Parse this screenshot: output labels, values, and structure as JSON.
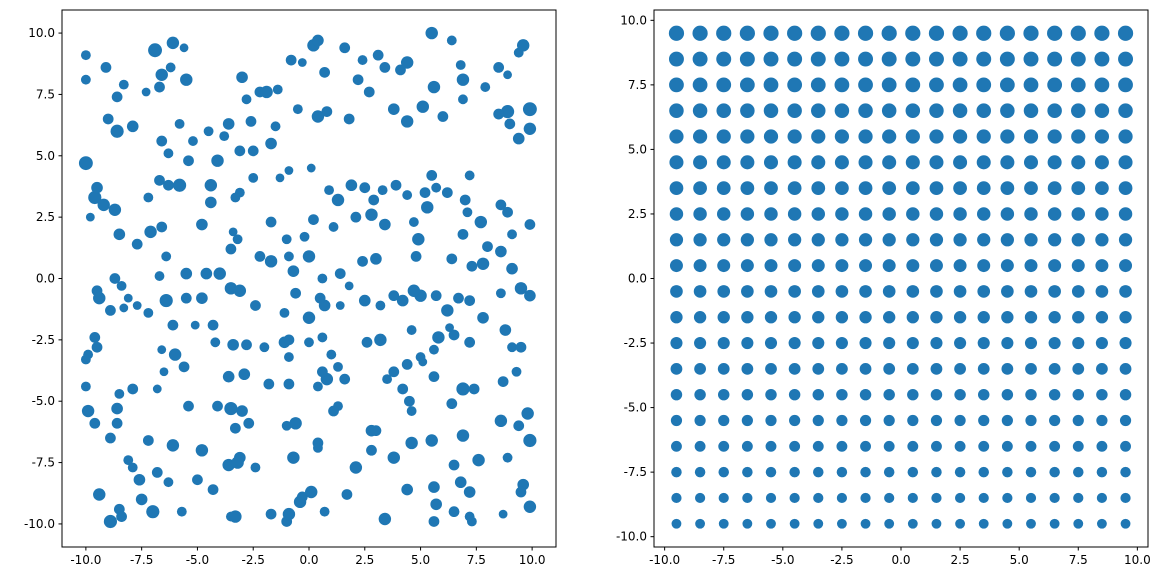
{
  "chart_data": [
    {
      "type": "scatter",
      "color": "#1f77b4",
      "xlim": [
        -11.07,
        11.07
      ],
      "ylim": [
        -10.94,
        10.94
      ],
      "xticks": [
        {
          "value": -10,
          "label": "-10.0"
        },
        -7.5,
        {
          "value": -5,
          "label": "-5.0"
        },
        -2.5,
        {
          "value": 0,
          "label": "0.0"
        },
        2.5,
        {
          "value": 5,
          "label": "5.0"
        },
        7.5,
        {
          "value": 10,
          "label": "10.0"
        }
      ],
      "yticks": [
        {
          "value": -10,
          "label": "-10.0"
        },
        -7.5,
        {
          "value": -5,
          "label": "-5.0"
        },
        -2.5,
        {
          "value": 0,
          "label": "0.0"
        },
        2.5,
        {
          "value": 5,
          "label": "5.0"
        },
        7.5,
        {
          "value": 10,
          "label": "10.0"
        }
      ],
      "x": [
        -10,
        -10,
        -10,
        -9.6,
        -9.5,
        -9.2,
        -8.7,
        -9.8,
        -9,
        -9.1,
        -8.6,
        -8.3,
        -8.6,
        -7.9,
        -7.3,
        -6.9,
        -6.1,
        -5.6,
        -6.6,
        -6.2,
        -5.5,
        -6.7,
        -5.8,
        -6.6,
        -6.3,
        -5.4,
        -4.5,
        -3.6,
        -2.6,
        -2.8,
        -3,
        -2.2,
        -1.9,
        -1.4,
        -0.8,
        -0.3,
        0.2,
        0.4,
        0.7,
        1.6,
        2.4,
        3.1,
        3.4,
        4.1,
        4.4,
        5.5,
        6.4,
        6.9,
        6.8,
        8.5,
        8.9,
        9.4,
        9.6,
        9.9,
        9.9,
        9.4,
        8.9,
        8.5,
        9,
        7.9,
        6.9,
        5.6,
        5.1,
        6,
        4.4,
        3.8,
        2.7,
        2.2,
        1.8,
        0.8,
        0.4,
        -0.5,
        -1.5,
        -1.7,
        -2.5,
        -3.1,
        -3.8,
        -4.1,
        -5.2,
        -6.7,
        -7.2,
        -6.3,
        -5.8,
        -4.4,
        -4.4,
        -3.1,
        -3.3,
        -2.5,
        -1.3,
        -0.9,
        0.1,
        0.9,
        1.3,
        1.9,
        2.5,
        2.9,
        3.3,
        3.9,
        4.4,
        5.2,
        5.5,
        5.7,
        6.2,
        7,
        7.2,
        7.1,
        8.6,
        8.9,
        9.9,
        9.1,
        7.7,
        6.9,
        5.3,
        4.7,
        3.4,
        2.8,
        2.1,
        1.1,
        0.2,
        -0.2,
        -1,
        -1.7,
        -3.4,
        -3.2,
        -4.8,
        -6.6,
        -7.1,
        -7.7,
        -8.5,
        -8.7,
        -9.5,
        -9.4,
        -8.4,
        -8.1,
        -8.3,
        -8.9,
        -6.7,
        -6.4,
        -5.5,
        -4.6,
        -4,
        -3.5,
        -2.2,
        -1.7,
        -0.9,
        -0.7,
        0,
        0.6,
        1.4,
        1.8,
        2.4,
        3,
        4.8,
        4.9,
        6.4,
        7.3,
        7.8,
        8,
        8.6,
        9.1,
        9.5,
        9.9,
        8.6,
        7.2,
        6.7,
        6.2,
        5.7,
        5,
        4.7,
        4.2,
        3.8,
        3.2,
        2.5,
        1.4,
        0.7,
        0.5,
        0,
        -0.6,
        -1.1,
        -2.4,
        -3.5,
        -3.1,
        -4.8,
        -5.5,
        -6.4,
        -5.1,
        -6.1,
        -7.2,
        -7.7,
        -9.6,
        -9.5,
        -9.9,
        -10,
        -10,
        -9.9,
        -9.6,
        -8.6,
        -8.6,
        -7.9,
        -8.5,
        -8.1,
        -7.9,
        -7.2,
        -6.8,
        -6.8,
        -6,
        -5.6,
        -6.6,
        -4.3,
        -4.2,
        -3.4,
        -2.8,
        -2,
        -1.1,
        -0.9,
        0,
        0.6,
        1,
        1.3,
        2.6,
        3.2,
        4.6,
        5,
        5.6,
        5.8,
        6.5,
        7.2,
        7.8,
        8.8,
        9.1,
        9.5,
        8.7,
        9.3,
        9.8,
        9.9,
        9.4,
        8.6,
        7.4,
        6.9,
        6.4,
        5.6,
        5.1,
        4.4,
        3.8,
        4.2,
        4.5,
        4.6,
        3.5,
        1.6,
        0.8,
        0.6,
        -0.9,
        -1.8,
        -2.9,
        -3.6,
        -3.5,
        -3,
        -4.1,
        -5.4,
        -6.5,
        -0.9,
        0.4,
        1.3,
        1.1,
        -1,
        -0.6,
        -2.7,
        -3.3,
        -3.1,
        -3.6,
        -3.2,
        -2.4,
        -4.8,
        -5,
        -6.1,
        -6.3,
        -4.3,
        -3.5,
        -3.3,
        -1.7,
        -1,
        -0.9,
        -0.4,
        -0.3,
        0.7,
        0.1,
        -0.7,
        0.4,
        0.4,
        1.7,
        2.1,
        3.4,
        2.8,
        2.8,
        3,
        3.8,
        4.4,
        4.6,
        5.5,
        5.6,
        5.7,
        5.6,
        6.5,
        6.8,
        6.9,
        7.2,
        7.6,
        7.2,
        6.5,
        7.3,
        8.9,
        9.6,
        9.5,
        9.9,
        8.7,
        6.3,
        -9.4,
        -8.9,
        -8.5,
        -8.4,
        -8.9,
        -7.6,
        -7.5,
        -7,
        -5.7
      ],
      "y": [
        4.7,
        9.1,
        8.1,
        3.3,
        3.7,
        3,
        2.8,
        2.5,
        6.5,
        8.6,
        7.4,
        7.9,
        6,
        6.2,
        7.6,
        9.3,
        9.6,
        9.4,
        8.3,
        8.6,
        8.1,
        7.8,
        6.3,
        5.6,
        5.1,
        4.8,
        6,
        6.3,
        6.4,
        7.3,
        8.2,
        7.6,
        7.6,
        7.7,
        8.9,
        8.8,
        9.5,
        9.7,
        8.4,
        9.4,
        8.9,
        9.1,
        8.6,
        8.5,
        8.8,
        10,
        9.7,
        8.1,
        8.7,
        8.6,
        8.3,
        9.2,
        9.5,
        6.9,
        6.1,
        5.7,
        6.8,
        6.7,
        6.3,
        7.8,
        7.3,
        7.8,
        7,
        6.6,
        6.4,
        6.9,
        7.6,
        8.1,
        6.5,
        6.8,
        6.6,
        6.9,
        6.2,
        5.5,
        5.2,
        5.2,
        5.8,
        4.8,
        5.6,
        4,
        3.3,
        3.8,
        3.8,
        3.8,
        3.1,
        3.5,
        3.3,
        4.1,
        4.1,
        4.4,
        4.5,
        3.6,
        3.2,
        3.8,
        3.7,
        3.2,
        3.6,
        3.8,
        3.4,
        3.5,
        4.2,
        3.7,
        3.5,
        3.2,
        4.2,
        2.7,
        3,
        2.7,
        2.2,
        1.8,
        2.3,
        1.8,
        2.9,
        2.3,
        2.2,
        2.6,
        2.5,
        2.1,
        2.4,
        1.7,
        1.6,
        2.3,
        1.9,
        1.6,
        2.2,
        2.1,
        1.9,
        1.4,
        1.8,
        0,
        -0.5,
        -0.8,
        -0.3,
        -0.8,
        -1.2,
        -1.3,
        0.1,
        0.9,
        0.2,
        0.2,
        0.2,
        1.2,
        0.9,
        0.7,
        0.9,
        0.3,
        0.9,
        0,
        0.2,
        -0.3,
        0.7,
        0.8,
        0.9,
        1.6,
        0.8,
        0.5,
        0.6,
        1.3,
        1.1,
        0.4,
        -0.4,
        -0.7,
        -0.6,
        -0.9,
        -0.8,
        -1.3,
        -0.7,
        -0.7,
        -0.5,
        -0.9,
        -0.7,
        -1.1,
        -0.9,
        -1.1,
        -1.1,
        -0.8,
        -1.6,
        -0.6,
        -1.4,
        -1.1,
        -0.4,
        -0.5,
        -0.8,
        -0.8,
        -0.9,
        -1.9,
        -1.9,
        -1.4,
        -1.1,
        -2.4,
        -2.8,
        -3.1,
        -3.3,
        -4.4,
        -5.4,
        -5.9,
        -5.3,
        -5.9,
        -4.5,
        -4.7,
        -7.4,
        -7.7,
        -6.6,
        -7.9,
        -4.5,
        -3.1,
        -3.6,
        -2.9,
        -1.9,
        -2.6,
        -2.7,
        -2.7,
        -2.8,
        -2.6,
        -2.5,
        -2.6,
        -2.4,
        -3.1,
        -3.6,
        -2.6,
        -2.5,
        -2.1,
        -3.2,
        -2.9,
        -2.4,
        -2.3,
        -2.6,
        -1.6,
        -2.1,
        -2.8,
        -2.8,
        -4.2,
        -3.8,
        -5.5,
        -6.6,
        -6,
        -5.8,
        -4.5,
        -4.5,
        -5.1,
        -4,
        -3.4,
        -3.5,
        -3.8,
        -4.5,
        -5,
        -5.4,
        -4.1,
        -4.1,
        -4.1,
        -3.8,
        -3.2,
        -4.3,
        -3.9,
        -4,
        -5.3,
        -5.4,
        -5.2,
        -5.2,
        -3.8,
        -4.3,
        -4.4,
        -5.2,
        -5.4,
        -6,
        -5.9,
        -5.9,
        -6.1,
        -7.3,
        -7.6,
        -7.5,
        -7.7,
        -7,
        -8.2,
        -6.8,
        -8.3,
        -8.6,
        -9.7,
        -9.7,
        -9.6,
        -9.9,
        -9.6,
        -9.1,
        -8.9,
        -9.5,
        -8.7,
        -7.3,
        -6.7,
        -6.9,
        -8.8,
        -7.7,
        -9.8,
        -7,
        -6.2,
        -6.2,
        -7.3,
        -8.6,
        -6.7,
        -6.6,
        -8.5,
        -9.2,
        -9.9,
        -7.6,
        -8.3,
        -6.4,
        -8.7,
        -7.4,
        -9.7,
        -9.5,
        -9.9,
        -7.3,
        -8.4,
        -8.7,
        -9.3,
        -9.6,
        -2,
        -8.8,
        -6.5,
        -9.4,
        -9.7,
        -9.9,
        -8.2,
        -9,
        -9.5,
        -9.5
      ],
      "sizes": [
        100,
        50,
        50,
        90,
        70,
        80,
        80,
        40,
        60,
        60,
        60,
        50,
        90,
        70,
        40,
        100,
        80,
        40,
        80,
        50,
        80,
        60,
        50,
        60,
        50,
        60,
        50,
        70,
        60,
        50,
        70,
        60,
        80,
        50,
        60,
        40,
        80,
        70,
        60,
        60,
        50,
        60,
        60,
        60,
        80,
        80,
        50,
        80,
        50,
        60,
        40,
        50,
        80,
        100,
        80,
        70,
        90,
        60,
        60,
        50,
        50,
        80,
        80,
        60,
        80,
        70,
        60,
        60,
        60,
        60,
        80,
        50,
        50,
        70,
        60,
        60,
        50,
        80,
        50,
        60,
        50,
        60,
        90,
        80,
        70,
        50,
        50,
        50,
        40,
        40,
        40,
        50,
        80,
        70,
        60,
        60,
        50,
        60,
        50,
        60,
        60,
        50,
        60,
        60,
        50,
        50,
        60,
        60,
        60,
        50,
        80,
        60,
        80,
        50,
        70,
        80,
        60,
        50,
        60,
        50,
        50,
        60,
        40,
        50,
        70,
        60,
        80,
        60,
        70,
        60,
        60,
        80,
        50,
        40,
        40,
        60,
        50,
        50,
        70,
        70,
        80,
        60,
        60,
        80,
        50,
        70,
        80,
        50,
        60,
        40,
        60,
        70,
        60,
        80,
        60,
        60,
        80,
        60,
        70,
        70,
        80,
        70,
        50,
        60,
        60,
        80,
        60,
        80,
        80,
        70,
        60,
        50,
        70,
        40,
        70,
        60,
        80,
        60,
        50,
        60,
        80,
        80,
        70,
        60,
        90,
        40,
        60,
        50,
        40,
        60,
        60,
        50,
        50,
        50,
        80,
        60,
        70,
        60,
        60,
        50,
        50,
        50,
        60,
        60,
        40,
        80,
        60,
        40,
        60,
        50,
        70,
        60,
        50,
        70,
        60,
        50,
        50,
        50,
        50,
        60,
        80,
        50,
        50,
        50,
        80,
        60,
        60,
        70,
        70,
        50,
        60,
        60,
        50,
        80,
        90,
        60,
        80,
        60,
        90,
        60,
        60,
        40,
        60,
        60,
        60,
        60,
        50,
        50,
        60,
        80,
        60,
        50,
        60,
        70,
        70,
        90,
        70,
        60,
        60,
        40,
        60,
        50,
        50,
        60,
        50,
        80,
        60,
        60,
        70,
        80,
        80,
        50,
        80,
        60,
        80,
        50,
        60,
        50,
        80,
        60,
        60,
        80,
        80,
        60,
        50,
        80,
        80,
        60,
        50,
        60,
        80,
        80,
        60,
        70,
        60,
        80,
        70,
        80,
        80,
        70,
        70,
        60,
        60,
        70,
        80,
        70,
        80,
        50,
        60,
        50,
        50,
        70,
        60,
        80,
        40,
        40,
        80,
        60,
        60,
        60,
        90,
        70,
        70,
        90,
        50
      ]
    },
    {
      "type": "scatter",
      "color": "#1f77b4",
      "xlim": [
        -10.45,
        10.45
      ],
      "ylim": [
        -10.4,
        10.4
      ],
      "xticks": [
        {
          "value": -10,
          "label": "-10.0"
        },
        -7.5,
        {
          "value": -5,
          "label": "-5.0"
        },
        -2.5,
        {
          "value": 0,
          "label": "0.0"
        },
        2.5,
        {
          "value": 5,
          "label": "5.0"
        },
        7.5,
        {
          "value": 10,
          "label": "10.0"
        }
      ],
      "yticks": [
        {
          "value": -10,
          "label": "-10.0"
        },
        -7.5,
        {
          "value": -5,
          "label": "-5.0"
        },
        -2.5,
        {
          "value": 0,
          "label": "0.0"
        },
        2.5,
        {
          "value": 5,
          "label": "5.0"
        },
        7.5,
        {
          "value": 10,
          "label": "10.0"
        }
      ],
      "x": [
        -9.5,
        -8.5,
        -7.5,
        -6.5,
        -5.5,
        -4.5,
        -3.5,
        -2.5,
        -1.5,
        -0.5,
        0.5,
        1.5,
        2.5,
        3.5,
        4.5,
        5.5,
        6.5,
        7.5,
        8.5,
        9.5
      ],
      "y": [
        -9.5,
        -8.5,
        -7.5,
        -6.5,
        -5.5,
        -4.5,
        -3.5,
        -2.5,
        -1.5,
        -0.5,
        0.5,
        1.5,
        2.5,
        3.5,
        4.5,
        5.5,
        6.5,
        7.5,
        8.5,
        9.5
      ],
      "row_sizes": [
        50,
        54,
        57,
        61,
        65,
        68,
        72,
        76,
        79,
        83,
        87,
        91,
        94,
        98,
        102,
        105,
        109,
        113,
        116,
        120
      ]
    }
  ]
}
